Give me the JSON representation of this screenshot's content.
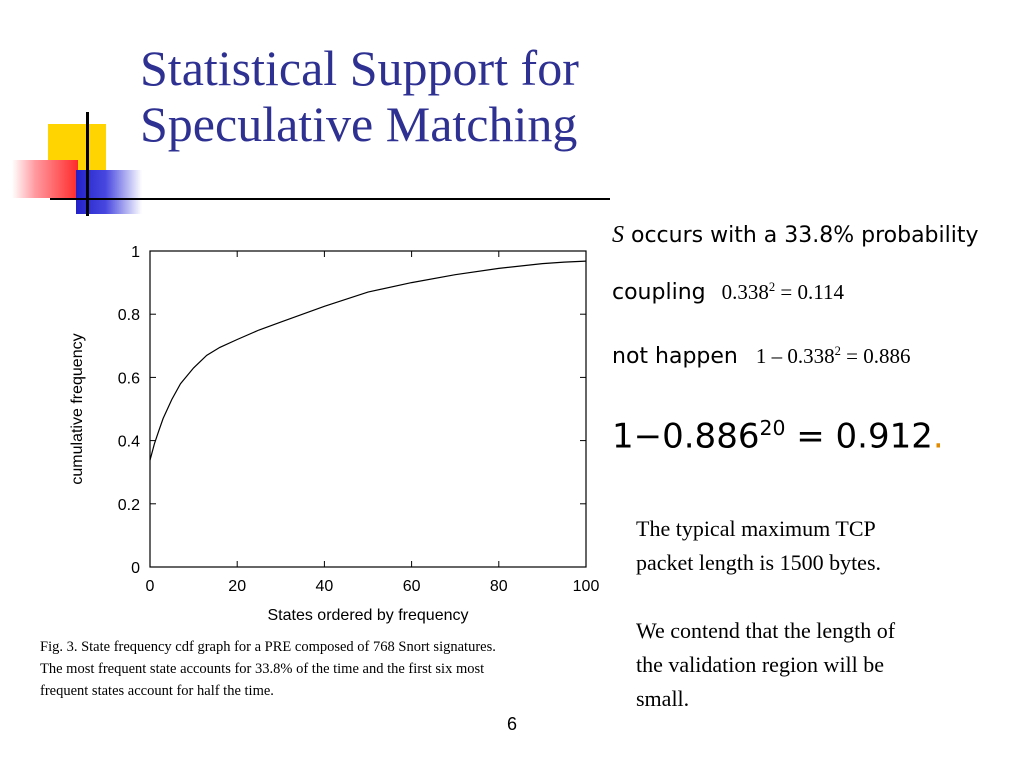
{
  "slide": {
    "title_line1": "Statistical Support for",
    "title_line2": "Speculative Matching",
    "page_number": "6",
    "colors": {
      "title": "#2e3192",
      "accent_yellow": "#ffd400",
      "accent_red": "#ff2a2a",
      "accent_blue": "#2121c8"
    }
  },
  "chart_data": {
    "type": "line",
    "xlabel": "States ordered by frequency",
    "ylabel": "cumulative frequency",
    "xlim": [
      0,
      100
    ],
    "ylim": [
      0,
      1
    ],
    "x_ticks": [
      "0",
      "20",
      "40",
      "60",
      "80",
      "100"
    ],
    "y_ticks": [
      "0",
      "0.2",
      "0.4",
      "0.6",
      "0.8",
      "1"
    ],
    "grid": false,
    "series": [
      {
        "x": [
          0,
          1,
          2,
          3,
          5,
          7,
          10,
          13,
          16,
          20,
          25,
          30,
          40,
          50,
          60,
          70,
          80,
          90,
          95,
          100
        ],
        "y": [
          0.338,
          0.39,
          0.43,
          0.47,
          0.53,
          0.58,
          0.63,
          0.67,
          0.695,
          0.72,
          0.75,
          0.775,
          0.825,
          0.87,
          0.9,
          0.925,
          0.945,
          0.96,
          0.965,
          0.968
        ]
      }
    ]
  },
  "caption": {
    "line1": "Fig. 3.   State frequency cdf graph for a PRE composed of 768 Snort signatures.",
    "line2": "The most frequent state accounts for 33.8% of the time and the first six most",
    "line3": "frequent states account for half the time."
  },
  "formulas": {
    "symbol": "S",
    "line1_text": " occurs with a 33.8% probability",
    "line2_label": "coupling",
    "line2_lhs": "0.338",
    "line2_exp": "2",
    "line2_rhs": " = 0.114",
    "line3_label": "not happen",
    "line3_lhs": "1 – 0.338",
    "line3_exp": "2",
    "line3_rhs": " = 0.886",
    "line4_lhs": "1−0.886",
    "line4_exp": "20",
    "line4_rhs": " = 0.912",
    "line4_dot": "."
  },
  "note": {
    "line1": "The typical maximum TCP",
    "line2": "packet length is 1500 bytes.",
    "line4": "We contend that the length of",
    "line5": " the validation region will be",
    "line6": " small."
  }
}
